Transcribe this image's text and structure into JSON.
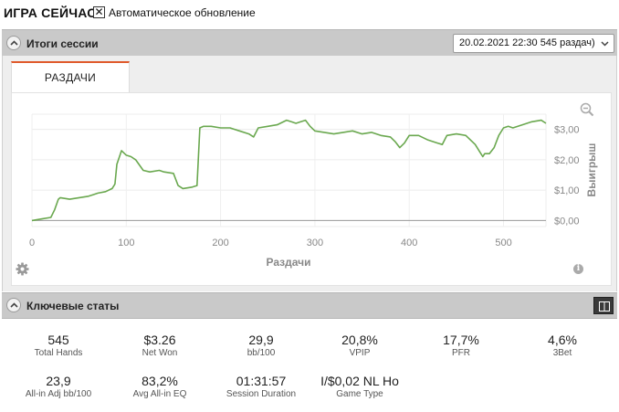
{
  "app": {
    "title": "ИГРА СЕЙЧАС",
    "auto_update_label": "Автоматическое обновление",
    "auto_update_checked": true,
    "check_glyph": "✕"
  },
  "session_results": {
    "title": "Итоги сессии",
    "session_selected": "20.02.2021 22:30 545 раздач)",
    "tabs": [
      {
        "label": "РАЗДАЧИ",
        "active": true
      }
    ]
  },
  "chart_data": {
    "type": "line",
    "xlabel": "Раздачи",
    "ylabel": "Выигрыш",
    "xlim": [
      0,
      545
    ],
    "ylim": [
      -0.2,
      3.5
    ],
    "x_ticks": [
      0,
      100,
      200,
      300,
      400,
      500
    ],
    "x_tick_labels": [
      "0",
      "100",
      "200",
      "300",
      "400",
      "500"
    ],
    "y_ticks": [
      0,
      1,
      2,
      3
    ],
    "y_tick_labels": [
      "$0,00",
      "$1,00",
      "$2,00",
      "$3,00"
    ],
    "grid": true,
    "line_color": "#6aa84f",
    "series": [
      {
        "x": [
          0,
          10,
          20,
          24,
          28,
          30,
          40,
          50,
          60,
          65,
          70,
          78,
          85,
          88,
          90,
          95,
          100,
          105,
          110,
          118,
          125,
          135,
          140,
          150,
          155,
          160,
          170,
          175,
          178,
          182,
          190,
          200,
          210,
          220,
          230,
          235,
          240,
          250,
          260,
          270,
          275,
          280,
          285,
          290,
          295,
          300,
          310,
          320,
          330,
          340,
          350,
          360,
          370,
          380,
          385,
          390,
          395,
          400,
          410,
          420,
          430,
          435,
          440,
          450,
          460,
          470,
          475,
          478,
          480,
          485,
          490,
          495,
          500,
          505,
          510,
          520,
          530,
          540,
          545
        ],
        "y": [
          0.0,
          0.05,
          0.1,
          0.35,
          0.7,
          0.75,
          0.7,
          0.75,
          0.8,
          0.85,
          0.9,
          0.95,
          1.05,
          1.2,
          1.85,
          2.3,
          2.15,
          2.1,
          2.0,
          1.65,
          1.6,
          1.65,
          1.6,
          1.55,
          1.15,
          1.05,
          1.1,
          1.15,
          3.05,
          3.1,
          3.1,
          3.05,
          3.05,
          2.95,
          2.85,
          2.75,
          3.05,
          3.1,
          3.15,
          3.3,
          3.25,
          3.2,
          3.25,
          3.3,
          3.1,
          2.95,
          2.9,
          2.85,
          2.9,
          2.95,
          2.85,
          2.9,
          2.8,
          2.75,
          2.6,
          2.4,
          2.55,
          2.8,
          2.8,
          2.65,
          2.55,
          2.5,
          2.8,
          2.85,
          2.8,
          2.5,
          2.25,
          2.1,
          2.2,
          2.2,
          2.4,
          2.8,
          3.05,
          3.1,
          3.05,
          3.15,
          3.25,
          3.3,
          3.2
        ]
      }
    ]
  },
  "key_stats": {
    "title": "Ключевые статы",
    "rows": [
      [
        {
          "value": "545",
          "label": "Total Hands"
        },
        {
          "value": "$3.26",
          "label": "Net Won"
        },
        {
          "value": "29,9",
          "label": "bb/100"
        },
        {
          "value": "20,8%",
          "label": "VPIP"
        },
        {
          "value": "17,7%",
          "label": "PFR"
        },
        {
          "value": "4,6%",
          "label": "3Bet"
        }
      ],
      [
        {
          "value": "23,9",
          "label": "All-in Adj bb/100"
        },
        {
          "value": "83,2%",
          "label": "Avg All-in EQ"
        },
        {
          "value": "01:31:57",
          "label": "Session Duration"
        },
        {
          "value": "I/$0,02 NL Ho",
          "label": "Game Type"
        }
      ]
    ]
  },
  "icons": {
    "collapse": "chevron-up-icon",
    "dropdown": "chevron-down-icon",
    "zoom": "zoom-out-icon",
    "settings": "gear-icon",
    "info": "info-icon",
    "info_glyph": "i",
    "layout": "split-view-icon"
  }
}
